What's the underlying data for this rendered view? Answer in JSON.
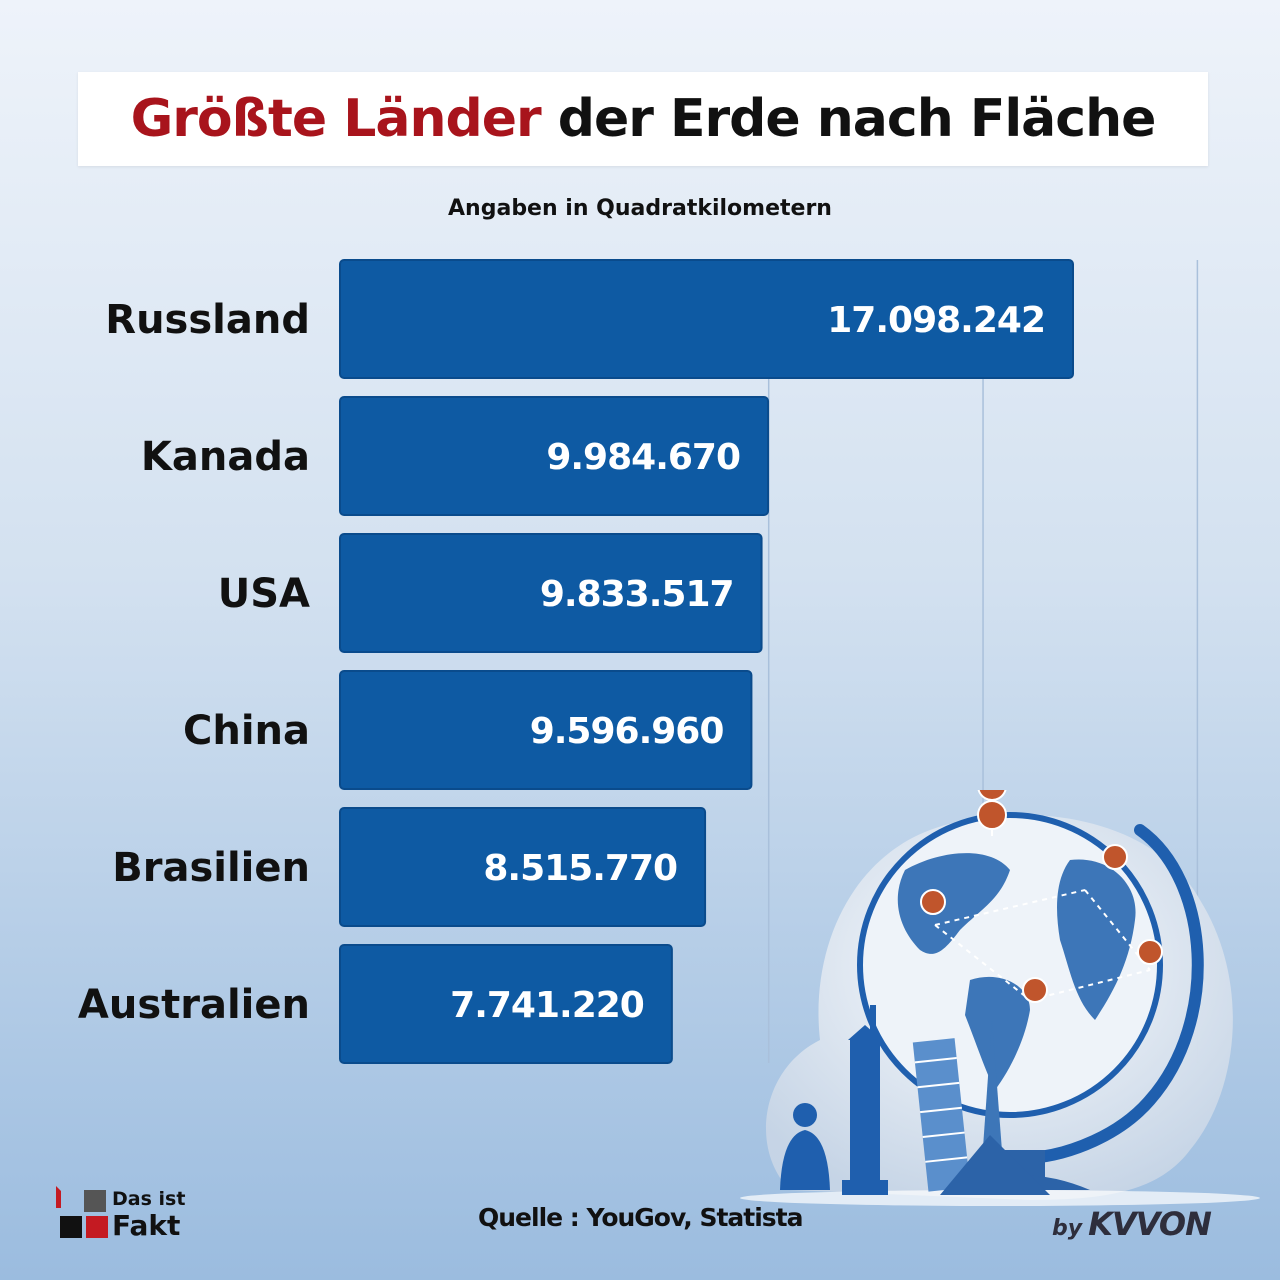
{
  "header": {
    "title_accent": "Größte Länder",
    "title_rest": " der Erde nach Fläche",
    "subtitle": "Angaben in Quadratkilometern"
  },
  "chart_data": {
    "type": "bar",
    "orientation": "horizontal",
    "categories": [
      "Russland",
      "Kanada",
      "USA",
      "China",
      "Brasilien",
      "Australien"
    ],
    "values": [
      17098242,
      9984670,
      9833517,
      9596960,
      8515770,
      7741220
    ],
    "value_labels": [
      "17.098.242",
      "9.984.670",
      "9.833.517",
      "9.596.960",
      "8.515.770",
      "7.741.220"
    ],
    "title": "Größte Länder der Erde nach Fläche",
    "unit": "Angaben in Quadratkilometern",
    "xlim": [
      0,
      20000000
    ],
    "grid": true,
    "bar_color": "#0e5aa3"
  },
  "footer": {
    "source": "Quelle : YouGov, Statista",
    "logo_line1": "Das ist",
    "logo_line2": "Fakt",
    "by": "by",
    "brand": "KVVON"
  },
  "colors": {
    "accent": "#a8141c",
    "bar": "#0e5aa3",
    "bar_edge": "#0a4b8c",
    "grid": "#a9c0db"
  },
  "illustration": {
    "description_icons": [
      "globe-icon",
      "map-pin-icon",
      "statue-of-liberty-icon",
      "leaning-tower-icon",
      "eiffel-tower-icon",
      "buddha-statue-icon",
      "pyramid-icon"
    ]
  }
}
